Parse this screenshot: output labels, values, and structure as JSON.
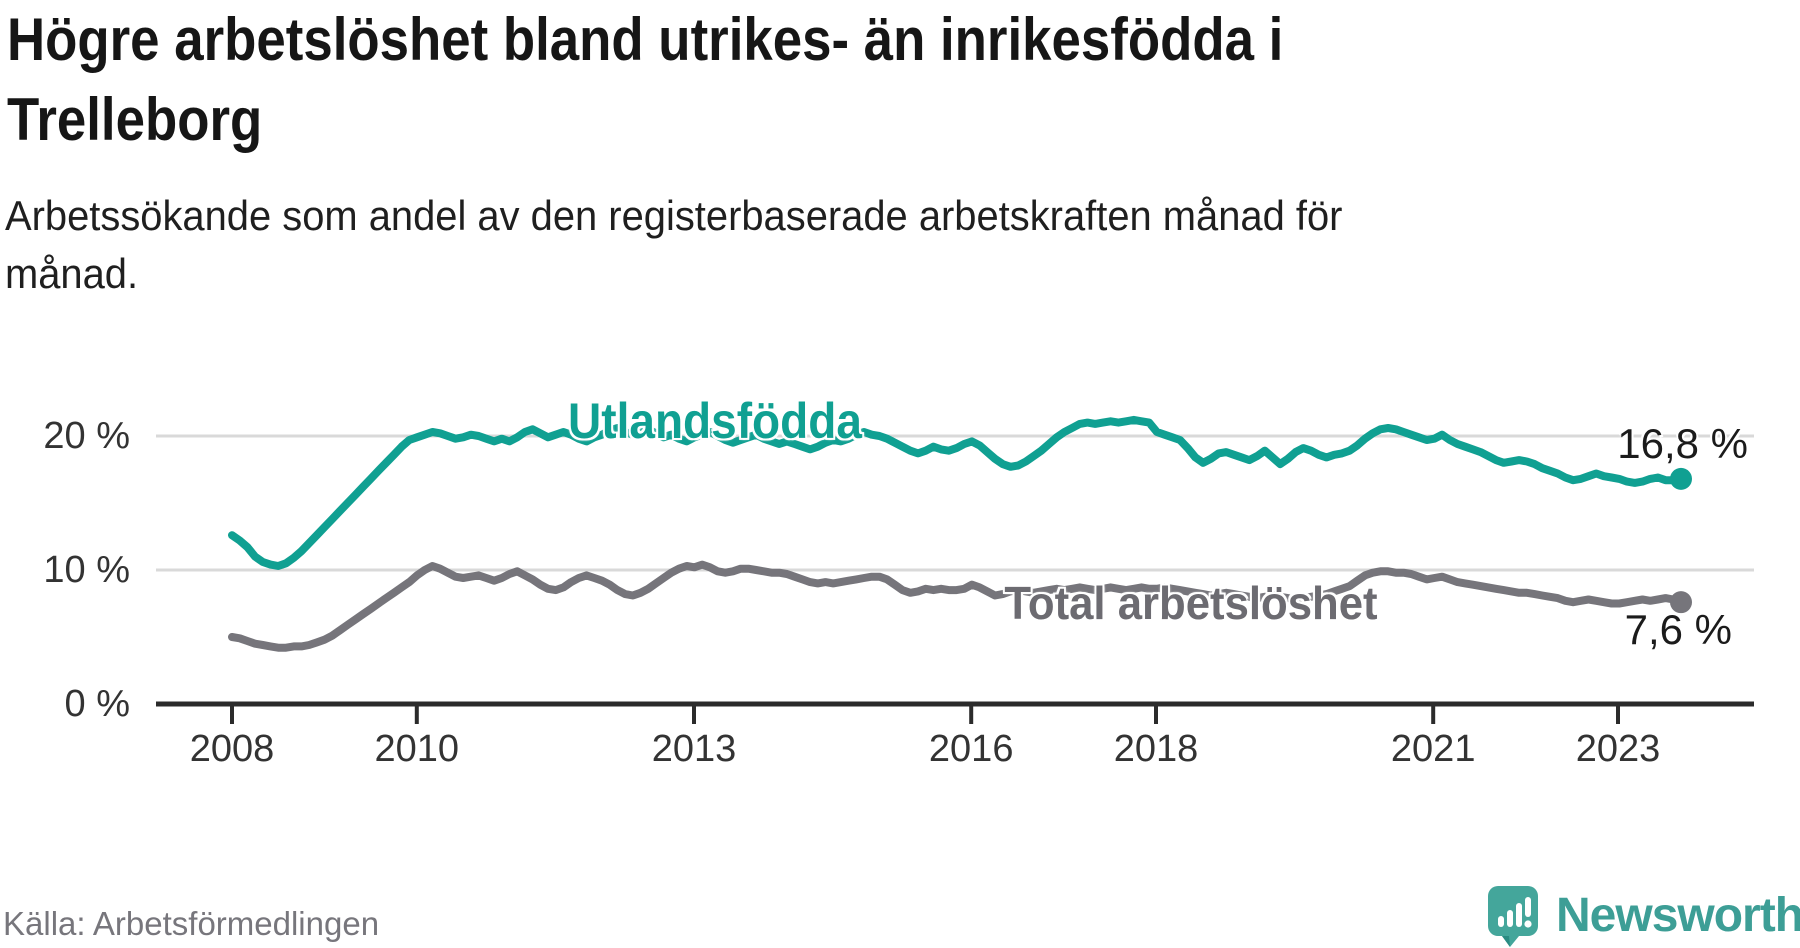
{
  "header": {
    "title_lines": [
      "Högre arbetslöshet bland utrikes- än inrikesfödda i",
      "Trelleborg"
    ],
    "subtitle_lines": [
      "Arbetssökande som andel av den registerbaserade arbetskraften månad för",
      "månad."
    ]
  },
  "colors": {
    "accent_teal": "#10a092",
    "series_gray": "#76757b",
    "grid": "#d9d9d9",
    "axis": "#2b2b2b",
    "brand_teal": "#3d9e96",
    "icon_teal": "#44a69b"
  },
  "chart_data": {
    "type": "line",
    "unit": "%",
    "x_start_year": 2008,
    "x_end_label_period": "2023",
    "months": 189,
    "grid": "horizontal",
    "ylim": [
      0,
      24
    ],
    "x_ticks": [
      {
        "year": 2008,
        "label": "2008"
      },
      {
        "year": 2010,
        "label": "2010"
      },
      {
        "year": 2013,
        "label": "2013"
      },
      {
        "year": 2016,
        "label": "2016"
      },
      {
        "year": 2018,
        "label": "2018"
      },
      {
        "year": 2021,
        "label": "2021"
      },
      {
        "year": 2023,
        "label": "2023"
      }
    ],
    "y_ticks": [
      {
        "value": 0,
        "label": "0 %"
      },
      {
        "value": 10,
        "label": "10 %"
      },
      {
        "value": 20,
        "label": "20 %"
      }
    ],
    "series": [
      {
        "name": "Utlandsfödda",
        "color": "#10a092",
        "end_label": "16,8 %",
        "end_value": 16.8,
        "values": [
          12.6,
          12.2,
          11.7,
          11.0,
          10.6,
          10.4,
          10.3,
          10.5,
          10.9,
          11.4,
          12.0,
          12.6,
          13.2,
          13.8,
          14.4,
          15.0,
          15.6,
          16.2,
          16.8,
          17.4,
          18.0,
          18.6,
          19.2,
          19.7,
          19.9,
          20.1,
          20.3,
          20.2,
          20.0,
          19.8,
          19.9,
          20.1,
          20.0,
          19.8,
          19.6,
          19.8,
          19.6,
          19.9,
          20.3,
          20.5,
          20.2,
          19.9,
          20.1,
          20.3,
          20.1,
          19.8,
          19.6,
          19.9,
          20.1,
          20.4,
          20.6,
          20.3,
          20.1,
          20.3,
          20.5,
          20.2,
          19.9,
          20.1,
          19.8,
          19.6,
          19.9,
          20.1,
          20.3,
          20.0,
          19.7,
          19.5,
          19.7,
          19.9,
          20.1,
          19.8,
          19.6,
          19.4,
          19.6,
          19.4,
          19.2,
          19.0,
          19.2,
          19.5,
          19.7,
          19.6,
          19.8,
          20.1,
          20.3,
          20.1,
          20.0,
          19.8,
          19.5,
          19.2,
          18.9,
          18.7,
          18.9,
          19.2,
          19.0,
          18.9,
          19.1,
          19.4,
          19.6,
          19.3,
          18.8,
          18.3,
          17.9,
          17.7,
          17.8,
          18.1,
          18.5,
          18.9,
          19.4,
          19.9,
          20.3,
          20.6,
          20.9,
          21.0,
          20.9,
          21.0,
          21.1,
          21.0,
          21.1,
          21.2,
          21.1,
          21.0,
          20.3,
          20.1,
          19.9,
          19.7,
          19.1,
          18.4,
          18.0,
          18.3,
          18.7,
          18.8,
          18.6,
          18.4,
          18.2,
          18.5,
          18.9,
          18.4,
          17.9,
          18.3,
          18.8,
          19.1,
          18.9,
          18.6,
          18.4,
          18.6,
          18.7,
          18.9,
          19.3,
          19.8,
          20.2,
          20.5,
          20.6,
          20.5,
          20.3,
          20.1,
          19.9,
          19.7,
          19.8,
          20.1,
          19.7,
          19.4,
          19.2,
          19.0,
          18.8,
          18.5,
          18.2,
          18.0,
          18.1,
          18.2,
          18.1,
          17.9,
          17.6,
          17.4,
          17.2,
          16.9,
          16.7,
          16.8,
          17.0,
          17.2,
          17.0,
          16.9,
          16.8,
          16.6,
          16.5,
          16.6,
          16.8,
          16.9,
          16.7,
          16.7,
          16.8
        ]
      },
      {
        "name": "Total arbetslöshet",
        "color": "#76757b",
        "end_label": "7,6 %",
        "end_value": 7.6,
        "values": [
          5.0,
          4.9,
          4.7,
          4.5,
          4.4,
          4.3,
          4.2,
          4.2,
          4.3,
          4.3,
          4.4,
          4.6,
          4.8,
          5.1,
          5.5,
          5.9,
          6.3,
          6.7,
          7.1,
          7.5,
          7.9,
          8.3,
          8.7,
          9.1,
          9.6,
          10.0,
          10.3,
          10.1,
          9.8,
          9.5,
          9.4,
          9.5,
          9.6,
          9.4,
          9.2,
          9.4,
          9.7,
          9.9,
          9.6,
          9.3,
          8.9,
          8.6,
          8.5,
          8.7,
          9.1,
          9.4,
          9.6,
          9.4,
          9.2,
          8.9,
          8.5,
          8.2,
          8.1,
          8.3,
          8.6,
          9.0,
          9.4,
          9.8,
          10.1,
          10.3,
          10.2,
          10.4,
          10.2,
          9.9,
          9.8,
          9.9,
          10.1,
          10.1,
          10.0,
          9.9,
          9.8,
          9.8,
          9.7,
          9.5,
          9.3,
          9.1,
          9.0,
          9.1,
          9.0,
          9.1,
          9.2,
          9.3,
          9.4,
          9.5,
          9.5,
          9.3,
          8.9,
          8.5,
          8.3,
          8.4,
          8.6,
          8.5,
          8.6,
          8.5,
          8.5,
          8.6,
          8.9,
          8.7,
          8.4,
          8.1,
          8.2,
          8.4,
          8.5,
          8.4,
          8.3,
          8.4,
          8.5,
          8.6,
          8.5,
          8.6,
          8.7,
          8.6,
          8.5,
          8.6,
          8.7,
          8.6,
          8.5,
          8.6,
          8.7,
          8.6,
          8.6,
          8.7,
          8.6,
          8.5,
          8.4,
          8.3,
          8.2,
          8.1,
          8.2,
          8.3,
          8.2,
          8.1,
          8.0,
          7.9,
          8.0,
          8.1,
          8.0,
          7.9,
          7.8,
          7.9,
          8.0,
          8.1,
          8.2,
          8.4,
          8.6,
          8.8,
          9.2,
          9.6,
          9.8,
          9.9,
          9.9,
          9.8,
          9.8,
          9.7,
          9.5,
          9.3,
          9.4,
          9.5,
          9.3,
          9.1,
          9.0,
          8.9,
          8.8,
          8.7,
          8.6,
          8.5,
          8.4,
          8.3,
          8.3,
          8.2,
          8.1,
          8.0,
          7.9,
          7.7,
          7.6,
          7.7,
          7.8,
          7.7,
          7.6,
          7.5,
          7.5,
          7.6,
          7.7,
          7.8,
          7.7,
          7.8,
          7.9,
          7.8,
          7.6
        ]
      }
    ]
  },
  "footer": {
    "source": "Källa: Arbetsförmedlingen",
    "brand": "Newsworthy"
  }
}
